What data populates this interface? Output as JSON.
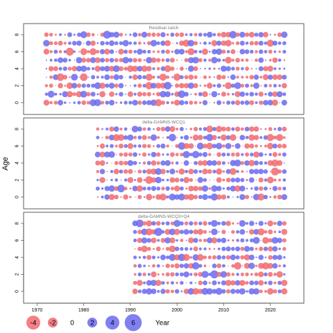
{
  "chart_data": {
    "type": "scatter",
    "subtype": "bubble-residuals",
    "ylabel": "Age",
    "xlabel": "Year",
    "xlim": [
      1968,
      2026
    ],
    "xticks": [
      1970,
      1980,
      1990,
      2000,
      2010,
      2020
    ],
    "ylim": [
      -1,
      9
    ],
    "yticks": [
      0,
      2,
      4,
      6,
      8
    ],
    "ages": [
      0,
      1,
      2,
      3,
      4,
      5,
      6,
      7,
      8
    ],
    "colors": {
      "positive": "#6a6af0",
      "negative": "#f06a70"
    },
    "panels": [
      {
        "title": "Residual catch",
        "year_start": 1972,
        "year_end": 2023,
        "seed": 11
      },
      {
        "title": "delta-GAMNS-WCQ1",
        "year_start": 1983,
        "year_end": 2023,
        "seed": 23
      },
      {
        "title": "delta-GAMNS-WCQ3+Q4",
        "year_start": 1991,
        "year_end": 2023,
        "seed": 37
      }
    ],
    "legend": {
      "title": "Year",
      "items": [
        {
          "label": "-4",
          "value": -4
        },
        {
          "label": "-2",
          "value": -2
        },
        {
          "label": "0",
          "value": 0
        },
        {
          "label": "2",
          "value": 2
        },
        {
          "label": "4",
          "value": 4
        },
        {
          "label": "6",
          "value": 6
        }
      ]
    }
  }
}
